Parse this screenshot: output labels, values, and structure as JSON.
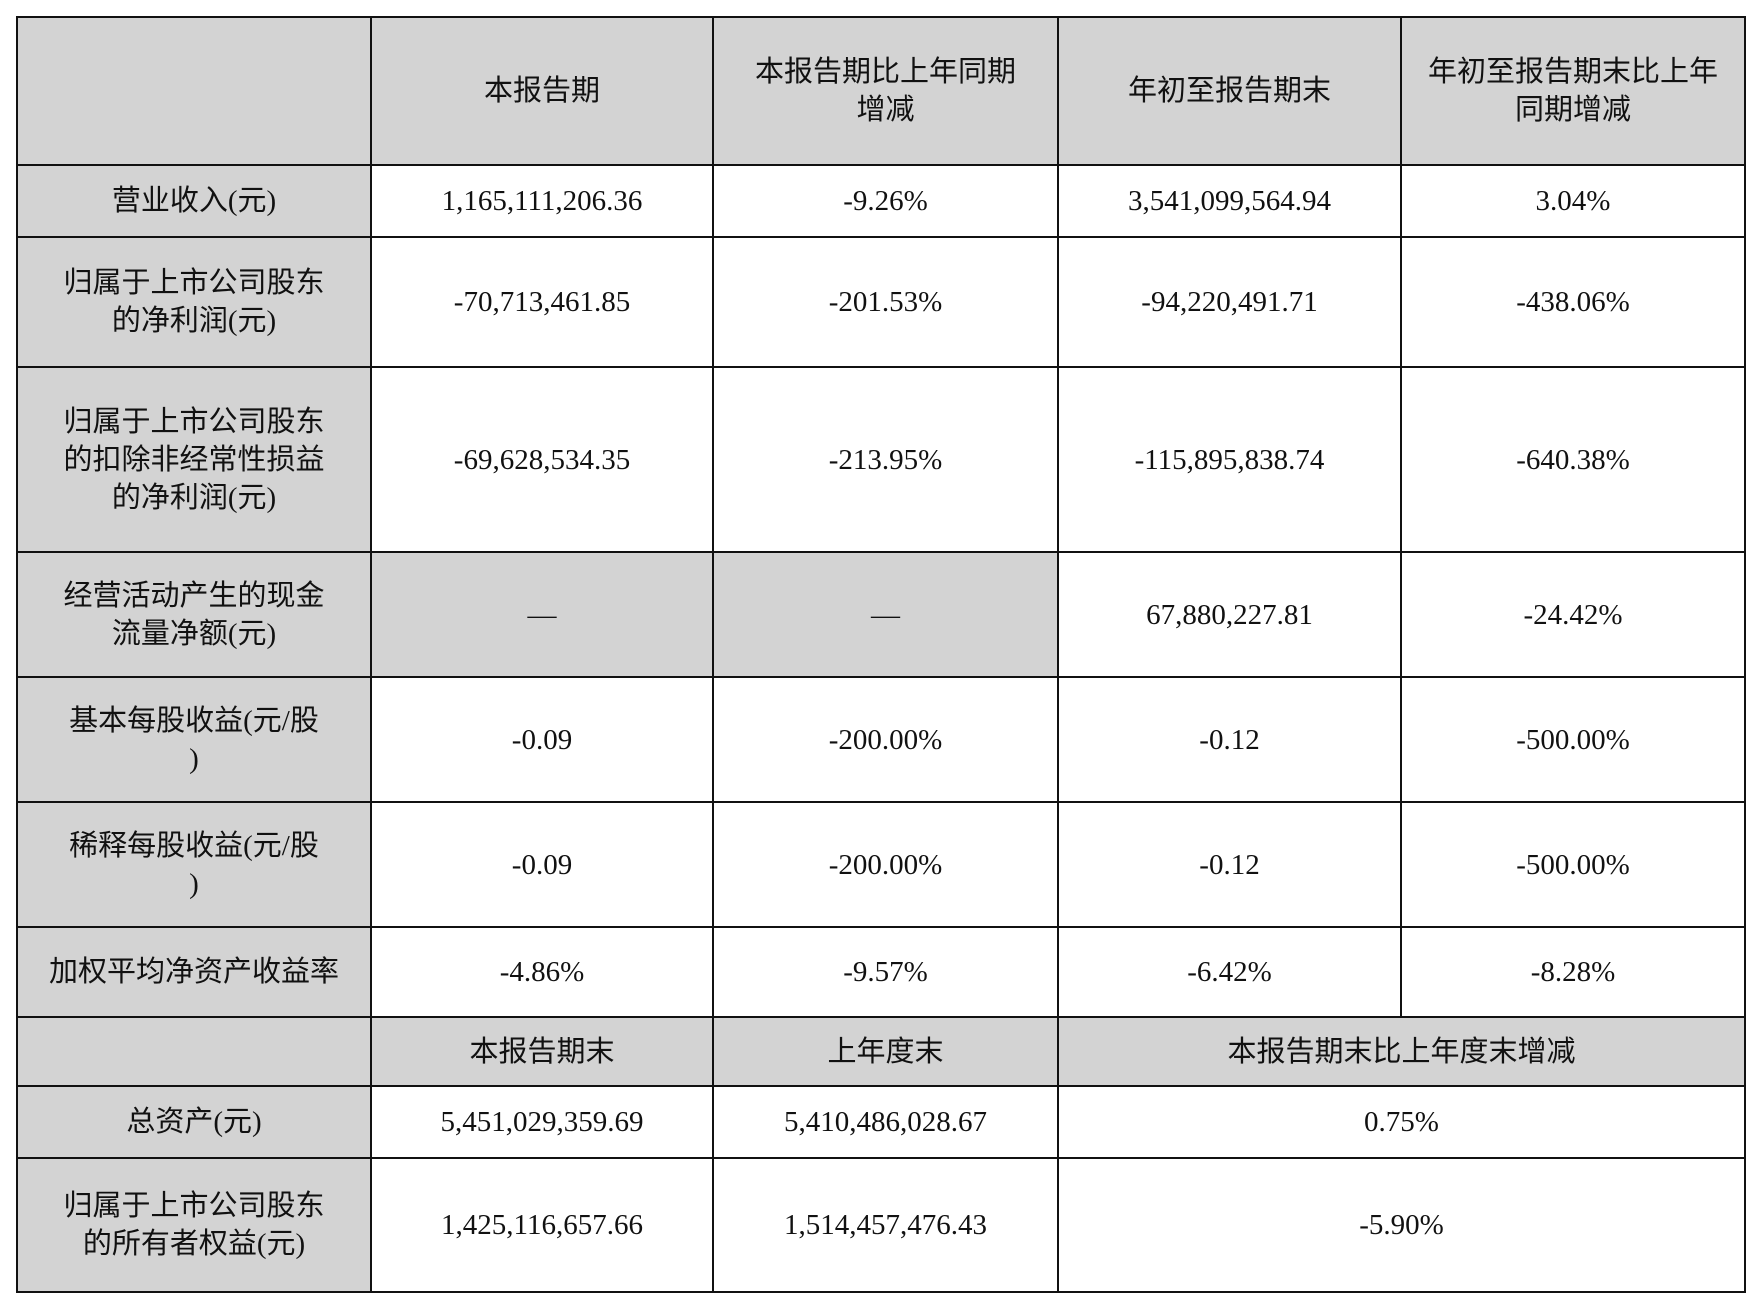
{
  "header": [
    "",
    "本报告期",
    "本报告期比上年同期增减",
    "年初至报告期末",
    "年初至报告期末比上年同期增减"
  ],
  "rows": [
    {
      "label": "营业收入(元)",
      "values": [
        "1,165,111,206.36",
        "-9.26%",
        "3,541,099,564.94",
        "3.04%"
      ]
    },
    {
      "label": "归属于上市公司股东的净利润(元)",
      "values": [
        "-70,713,461.85",
        "-201.53%",
        "-94,220,491.71",
        "-438.06%"
      ]
    },
    {
      "label": "归属于上市公司股东的扣除非经常性损益的净利润(元)",
      "values": [
        "-69,628,534.35",
        "-213.95%",
        "-115,895,838.74",
        "-640.38%"
      ]
    },
    {
      "label": "经营活动产生的现金流量净额(元)",
      "values": [
        "—",
        "—",
        "67,880,227.81",
        "-24.42%"
      ]
    },
    {
      "label": "基本每股收益(元/股 )",
      "values": [
        "-0.09",
        "-200.00%",
        "-0.12",
        "-500.00%"
      ]
    },
    {
      "label": "稀释每股收益(元/股 )",
      "values": [
        "-0.09",
        "-200.00%",
        "-0.12",
        "-500.00%"
      ]
    },
    {
      "label": "加权平均净资产收益率",
      "values": [
        "-4.86%",
        "-9.57%",
        "-6.42%",
        "-8.28%"
      ]
    }
  ],
  "header2": [
    "",
    "本报告期末",
    "上年度末",
    "本报告期末比上年度末增减"
  ],
  "rows2": [
    {
      "label": "总资产(元)",
      "values": [
        "5,451,029,359.69",
        "5,410,486,028.67",
        "0.75%"
      ]
    },
    {
      "label": "归属于上市公司股东的所有者权益(元)",
      "values": [
        "1,425,116,657.66",
        "1,514,457,476.43",
        "-5.90%"
      ]
    }
  ]
}
